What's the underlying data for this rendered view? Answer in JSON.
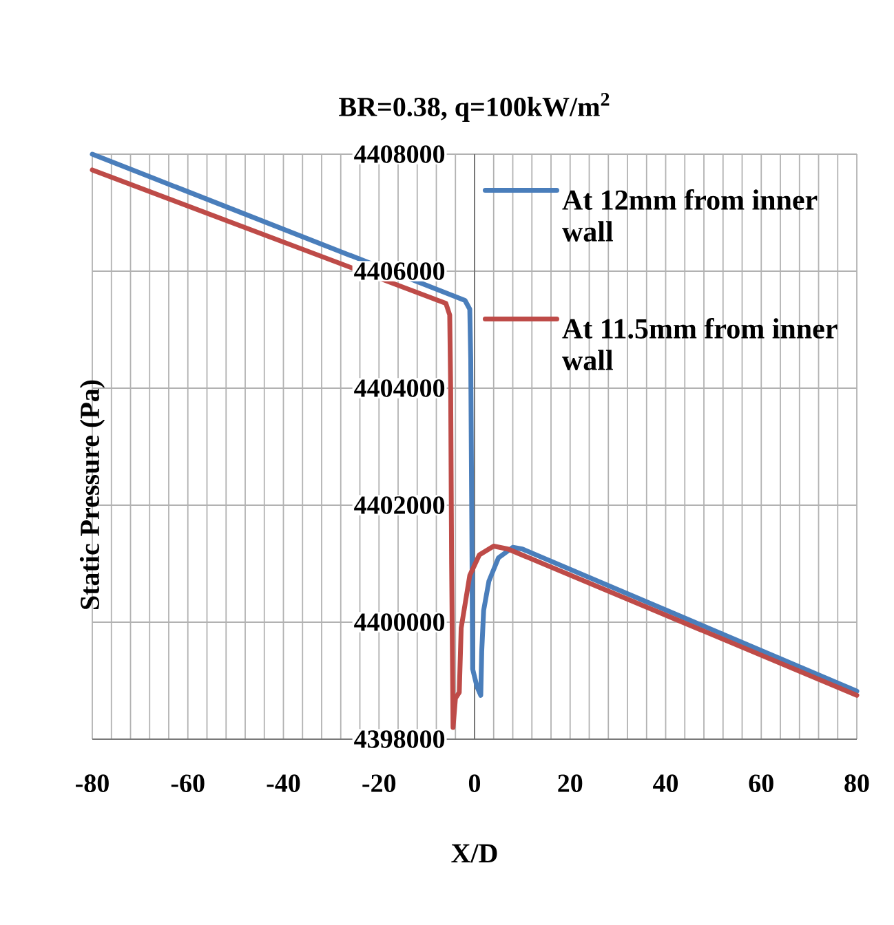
{
  "chart_data": {
    "type": "line",
    "title": "BR=0.38, q=100kW/m$^{2}$",
    "xlabel": "X/D",
    "ylabel": "Static Pressure (Pa)",
    "xlim": [
      -80,
      80
    ],
    "xticks": [
      -80,
      -60,
      -40,
      -20,
      0,
      20,
      40,
      60,
      80
    ],
    "ylim": [
      4398000,
      4408000
    ],
    "yticks": [
      4398000,
      4400000,
      4402000,
      4404000,
      4406000,
      4408000
    ],
    "grid": true,
    "legend": "top right",
    "marker": "none",
    "line_style": "solid",
    "series": [
      {
        "name": "At 12mm from inner wall",
        "color": "#4a7ebb",
        "x": [
          -80,
          -2,
          -1,
          -0.8,
          -0.6,
          -0.4,
          0.5,
          1.3,
          1.5,
          1.9,
          3,
          5,
          8,
          10,
          80
        ],
        "values": [
          4408000,
          4405500,
          4405350,
          4404500,
          4402000,
          4399200,
          4398900,
          4398750,
          4399500,
          4400200,
          4400700,
          4401100,
          4401280,
          4401250,
          4398820
        ]
      },
      {
        "name": "At 11.5mm from inner wall",
        "color": "#be4b48",
        "x": [
          -80,
          -6,
          -5.2,
          -5,
          -4.8,
          -4.5,
          -4,
          -3.2,
          -2.8,
          -2,
          -1,
          1,
          4,
          7,
          80
        ],
        "values": [
          4407730,
          4405450,
          4405250,
          4404000,
          4401000,
          4398200,
          4398700,
          4398800,
          4399900,
          4400300,
          4400800,
          4401150,
          4401300,
          4401250,
          4398750
        ]
      }
    ]
  }
}
